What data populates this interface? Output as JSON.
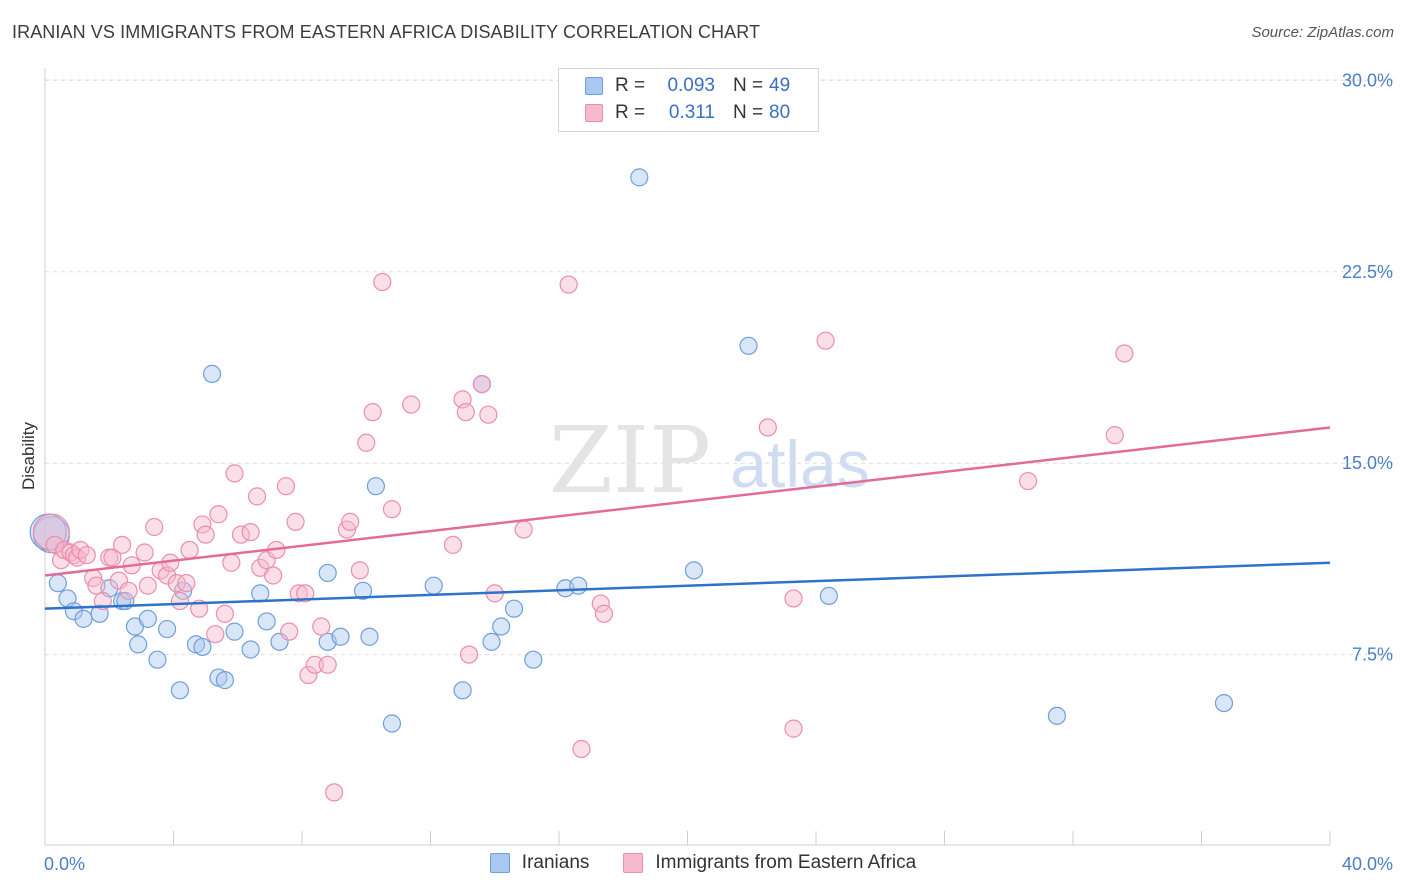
{
  "header": {
    "title": "IRANIAN VS IMMIGRANTS FROM EASTERN AFRICA DISABILITY CORRELATION CHART",
    "source": "Source: ZipAtlas.com"
  },
  "watermark": {
    "zip": "ZIP",
    "atlas": "atlas"
  },
  "legend": {
    "rows": [
      {
        "r_label": "R =",
        "r_value": "0.093",
        "n_label": "N =",
        "n_value": "49"
      },
      {
        "r_label": "R =",
        "r_value": "0.311",
        "n_label": "N =",
        "n_value": "80"
      }
    ]
  },
  "colors": {
    "iranians_fill": "#a9c8f0",
    "iranians_stroke": "#6f9fdc",
    "iranians_line": "#2f72c9",
    "eastafrica_fill": "#f7b9cc",
    "eastafrica_stroke": "#eb8eac",
    "eastafrica_line": "#e46a98",
    "tick_text": "#4a7fc8",
    "grid": "#dddddd"
  },
  "chart_data": {
    "type": "scatter",
    "title": "IRANIAN VS IMMIGRANTS FROM EASTERN AFRICA DISABILITY CORRELATION CHART",
    "xlabel": "",
    "ylabel": "Disability",
    "xlim": [
      0,
      40
    ],
    "ylim": [
      0,
      31
    ],
    "x_tick_labels": [
      "0.0%",
      "40.0%"
    ],
    "y_ticks": [
      7.5,
      15.0,
      22.5,
      30.0
    ],
    "y_tick_labels": [
      "7.5%",
      "15.0%",
      "22.5%",
      "30.0%"
    ],
    "grid": true,
    "legend_position": "bottom",
    "series": [
      {
        "name": "Iranians",
        "r": 0.093,
        "n": 49,
        "trend": {
          "x": [
            0,
            40
          ],
          "y": [
            9.3,
            11.1
          ]
        },
        "points": [
          [
            0.2,
            12.2
          ],
          [
            0.4,
            10.3
          ],
          [
            0.7,
            9.7
          ],
          [
            0.9,
            9.2
          ],
          [
            1.2,
            8.9
          ],
          [
            1.7,
            9.1
          ],
          [
            2.0,
            10.1
          ],
          [
            2.4,
            9.6
          ],
          [
            2.5,
            9.6
          ],
          [
            2.8,
            8.6
          ],
          [
            2.9,
            7.9
          ],
          [
            3.2,
            8.9
          ],
          [
            3.5,
            7.3
          ],
          [
            3.8,
            8.5
          ],
          [
            4.2,
            6.1
          ],
          [
            4.3,
            10.0
          ],
          [
            4.7,
            7.9
          ],
          [
            4.9,
            7.8
          ],
          [
            5.2,
            18.5
          ],
          [
            5.4,
            6.6
          ],
          [
            5.6,
            6.5
          ],
          [
            5.9,
            8.4
          ],
          [
            6.4,
            7.7
          ],
          [
            6.7,
            9.9
          ],
          [
            6.9,
            8.8
          ],
          [
            7.3,
            8.0
          ],
          [
            8.8,
            8.0
          ],
          [
            8.8,
            10.7
          ],
          [
            9.2,
            8.2
          ],
          [
            9.9,
            10.0
          ],
          [
            10.1,
            8.2
          ],
          [
            10.3,
            14.1
          ],
          [
            10.8,
            4.8
          ],
          [
            12.1,
            10.2
          ],
          [
            13.0,
            6.1
          ],
          [
            13.6,
            18.1
          ],
          [
            13.9,
            8.0
          ],
          [
            14.2,
            8.6
          ],
          [
            14.6,
            9.3
          ],
          [
            15.2,
            7.3
          ],
          [
            16.2,
            10.1
          ],
          [
            16.6,
            10.2
          ],
          [
            18.5,
            26.2
          ],
          [
            20.2,
            10.8
          ],
          [
            21.9,
            19.6
          ],
          [
            24.4,
            9.8
          ],
          [
            31.5,
            5.1
          ],
          [
            36.7,
            5.6
          ],
          [
            0.1,
            12.3
          ]
        ]
      },
      {
        "name": "Immigrants from Eastern Africa",
        "r": 0.311,
        "n": 80,
        "trend": {
          "x": [
            0,
            40
          ],
          "y": [
            10.6,
            16.4
          ]
        },
        "points": [
          [
            0.2,
            12.3
          ],
          [
            0.3,
            11.8
          ],
          [
            0.5,
            11.2
          ],
          [
            0.6,
            11.6
          ],
          [
            0.8,
            11.5
          ],
          [
            0.9,
            11.4
          ],
          [
            1.0,
            11.3
          ],
          [
            1.1,
            11.6
          ],
          [
            1.3,
            11.4
          ],
          [
            1.5,
            10.5
          ],
          [
            1.6,
            10.2
          ],
          [
            1.8,
            9.6
          ],
          [
            2.0,
            11.3
          ],
          [
            2.1,
            11.3
          ],
          [
            2.3,
            10.4
          ],
          [
            2.4,
            11.8
          ],
          [
            2.6,
            10.0
          ],
          [
            2.7,
            11.0
          ],
          [
            3.1,
            11.5
          ],
          [
            3.2,
            10.2
          ],
          [
            3.4,
            12.5
          ],
          [
            3.6,
            10.8
          ],
          [
            3.8,
            10.6
          ],
          [
            3.9,
            11.1
          ],
          [
            4.1,
            10.3
          ],
          [
            4.2,
            9.6
          ],
          [
            4.4,
            10.3
          ],
          [
            4.5,
            11.6
          ],
          [
            4.8,
            9.3
          ],
          [
            4.9,
            12.6
          ],
          [
            5.0,
            12.2
          ],
          [
            5.3,
            8.3
          ],
          [
            5.4,
            13.0
          ],
          [
            5.6,
            9.1
          ],
          [
            5.8,
            11.1
          ],
          [
            5.9,
            14.6
          ],
          [
            6.1,
            12.2
          ],
          [
            6.4,
            12.3
          ],
          [
            6.6,
            13.7
          ],
          [
            6.7,
            10.9
          ],
          [
            6.9,
            11.2
          ],
          [
            7.1,
            10.6
          ],
          [
            7.2,
            11.6
          ],
          [
            7.5,
            14.1
          ],
          [
            7.6,
            8.4
          ],
          [
            7.8,
            12.7
          ],
          [
            7.9,
            9.9
          ],
          [
            8.1,
            9.9
          ],
          [
            8.2,
            6.7
          ],
          [
            8.4,
            7.1
          ],
          [
            8.6,
            8.6
          ],
          [
            8.8,
            7.1
          ],
          [
            9.0,
            2.1
          ],
          [
            9.4,
            12.4
          ],
          [
            9.5,
            12.7
          ],
          [
            9.8,
            10.8
          ],
          [
            10.0,
            15.8
          ],
          [
            10.2,
            17.0
          ],
          [
            10.5,
            22.1
          ],
          [
            10.8,
            13.2
          ],
          [
            11.4,
            17.3
          ],
          [
            12.7,
            11.8
          ],
          [
            13.0,
            17.5
          ],
          [
            13.1,
            17.0
          ],
          [
            13.2,
            7.5
          ],
          [
            13.6,
            18.1
          ],
          [
            13.8,
            16.9
          ],
          [
            14.0,
            9.9
          ],
          [
            14.9,
            12.4
          ],
          [
            16.3,
            22.0
          ],
          [
            16.7,
            3.8
          ],
          [
            17.3,
            9.5
          ],
          [
            17.4,
            9.1
          ],
          [
            22.5,
            16.4
          ],
          [
            23.3,
            9.7
          ],
          [
            23.3,
            4.6
          ],
          [
            24.3,
            19.8
          ],
          [
            30.6,
            14.3
          ],
          [
            33.3,
            16.1
          ],
          [
            33.6,
            19.3
          ]
        ]
      }
    ]
  }
}
